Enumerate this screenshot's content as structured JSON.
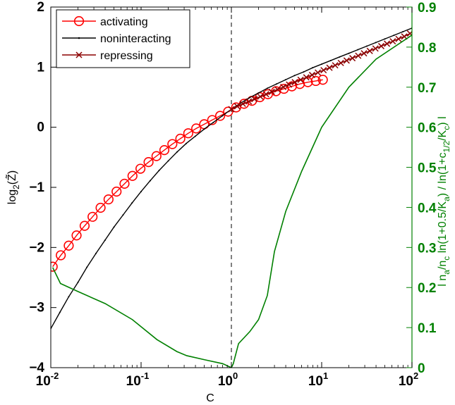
{
  "chart_data": {
    "type": "line",
    "x_scale": "log",
    "xlim": [
      0.01,
      100
    ],
    "ylim_left": [
      -4,
      2
    ],
    "ylim_right": [
      0,
      0.9
    ],
    "grid": false,
    "legend_position": "top-left",
    "xlabel": "C",
    "ylabel_left": {
      "base": "log",
      "sub": "2",
      "arg": "(Z̃)"
    },
    "ylabel_right": {
      "parts": [
        {
          "t": "l n"
        },
        {
          "t": "a",
          "sub": true
        },
        {
          "t": "/n"
        },
        {
          "t": "c",
          "sub": true
        },
        {
          "t": " ln(1+0.5/K"
        },
        {
          "t": "a",
          "sub": true
        },
        {
          "t": ") / ln(1+c"
        },
        {
          "t": "1/2",
          "sub": true
        },
        {
          "t": "/K"
        },
        {
          "t": "c",
          "sub": true
        },
        {
          "t": ") l"
        }
      ]
    },
    "x_ticks": [
      {
        "value": 0.01,
        "base": "10",
        "exp": "-2"
      },
      {
        "value": 0.1,
        "base": "10",
        "exp": "-1"
      },
      {
        "value": 1,
        "base": "10",
        "exp": "0"
      },
      {
        "value": 10,
        "base": "10",
        "exp": "1"
      },
      {
        "value": 100,
        "base": "10",
        "exp": "2"
      }
    ],
    "y_ticks_left": [
      {
        "value": -4,
        "label": "−4"
      },
      {
        "value": -3,
        "label": "−3"
      },
      {
        "value": -2,
        "label": "−2"
      },
      {
        "value": -1,
        "label": "−1"
      },
      {
        "value": 0,
        "label": "0"
      },
      {
        "value": 1,
        "label": "1"
      },
      {
        "value": 2,
        "label": "2"
      }
    ],
    "y_ticks_right": [
      {
        "value": 0,
        "label": "0"
      },
      {
        "value": 0.1,
        "label": "0.1"
      },
      {
        "value": 0.2,
        "label": "0.2"
      },
      {
        "value": 0.3,
        "label": "0.3"
      },
      {
        "value": 0.4,
        "label": "0.4"
      },
      {
        "value": 0.5,
        "label": "0.5"
      },
      {
        "value": 0.6,
        "label": "0.6"
      },
      {
        "value": 0.7,
        "label": "0.7"
      },
      {
        "value": 0.8,
        "label": "0.8"
      },
      {
        "value": 0.9,
        "label": "0.9"
      }
    ],
    "reference_line": {
      "x": 1,
      "style": "dashed",
      "color": "#000000"
    },
    "series": [
      {
        "name": "activating",
        "axis": "left",
        "color": "#ff0000",
        "marker": "circle",
        "x": [
          0.0105,
          0.0129,
          0.0158,
          0.0193,
          0.0237,
          0.029,
          0.0356,
          0.0436,
          0.0535,
          0.0655,
          0.0803,
          0.0984,
          0.121,
          0.148,
          0.181,
          0.222,
          0.272,
          0.333,
          0.408,
          0.5,
          0.613,
          0.751,
          0.92,
          1.13,
          1.38,
          1.69,
          2.07,
          2.54,
          3.12,
          3.82,
          4.68,
          5.73,
          7.03,
          8.61,
          10.3
        ],
        "y": [
          -2.32,
          -2.13,
          -1.97,
          -1.8,
          -1.64,
          -1.49,
          -1.34,
          -1.2,
          -1.07,
          -0.94,
          -0.81,
          -0.69,
          -0.58,
          -0.48,
          -0.38,
          -0.28,
          -0.19,
          -0.1,
          -0.02,
          0.05,
          0.12,
          0.19,
          0.26,
          0.33,
          0.39,
          0.44,
          0.5,
          0.55,
          0.6,
          0.64,
          0.68,
          0.72,
          0.75,
          0.77,
          0.79
        ]
      },
      {
        "name": "noninteracting",
        "axis": "left",
        "color": "#000000",
        "marker": "dot",
        "x": [
          0.01,
          0.0126,
          0.0158,
          0.02,
          0.0251,
          0.0316,
          0.0398,
          0.0501,
          0.0631,
          0.0794,
          0.1,
          0.126,
          0.158,
          0.2,
          0.251,
          0.316,
          0.398,
          0.501,
          0.631,
          0.794,
          1,
          1.26,
          1.58,
          2,
          2.51,
          3.16,
          3.98,
          5.01,
          6.31,
          7.94,
          10,
          12.6,
          15.8,
          20,
          25.1,
          31.6,
          39.8,
          50.1,
          63.1,
          79.4,
          100
        ],
        "y": [
          -3.35,
          -3.08,
          -2.82,
          -2.58,
          -2.33,
          -2.1,
          -1.88,
          -1.66,
          -1.46,
          -1.26,
          -1.07,
          -0.89,
          -0.72,
          -0.56,
          -0.41,
          -0.27,
          -0.15,
          -0.03,
          0.08,
          0.19,
          0.3,
          0.4,
          0.49,
          0.57,
          0.65,
          0.72,
          0.79,
          0.86,
          0.92,
          0.99,
          1.05,
          1.11,
          1.17,
          1.23,
          1.29,
          1.35,
          1.41,
          1.47,
          1.53,
          1.59,
          1.65
        ]
      },
      {
        "name": "repressing",
        "axis": "left",
        "color": "#8b0000",
        "marker": "x",
        "x": [
          1,
          1.16,
          1.34,
          1.56,
          1.8,
          2.09,
          2.42,
          2.8,
          3.24,
          3.76,
          4.35,
          5.04,
          5.84,
          6.76,
          7.83,
          9.07,
          10.5,
          12.2,
          14.1,
          16.3,
          18.9,
          21.9,
          25.4,
          29.4,
          34.1,
          39.4,
          45.7,
          52.9,
          61.3,
          71,
          82.2,
          95.2
        ],
        "y": [
          0.3,
          0.35,
          0.39,
          0.43,
          0.47,
          0.51,
          0.55,
          0.59,
          0.63,
          0.67,
          0.71,
          0.75,
          0.79,
          0.83,
          0.87,
          0.91,
          0.95,
          0.99,
          1.03,
          1.07,
          1.11,
          1.15,
          1.19,
          1.23,
          1.27,
          1.31,
          1.35,
          1.39,
          1.43,
          1.47,
          1.51,
          1.56
        ]
      },
      {
        "axis": "right",
        "color": "#008000",
        "marker": "none",
        "x": [
          0.0105,
          0.0128,
          0.02,
          0.04,
          0.08,
          0.15,
          0.25,
          0.32,
          0.5,
          0.8,
          1.0
        ],
        "y": [
          0.25,
          0.21,
          0.19,
          0.16,
          0.12,
          0.07,
          0.04,
          0.03,
          0.02,
          0.01,
          0.0
        ]
      },
      {
        "axis": "right",
        "color": "#008000",
        "marker": "none",
        "x": [
          1.0,
          1.05,
          1.2,
          1.6,
          2.0,
          2.5,
          3.0,
          4.0,
          6.0,
          10,
          20,
          40,
          100
        ],
        "y": [
          0.0,
          0.01,
          0.06,
          0.09,
          0.12,
          0.18,
          0.29,
          0.39,
          0.49,
          0.6,
          0.7,
          0.77,
          0.83
        ]
      }
    ]
  }
}
